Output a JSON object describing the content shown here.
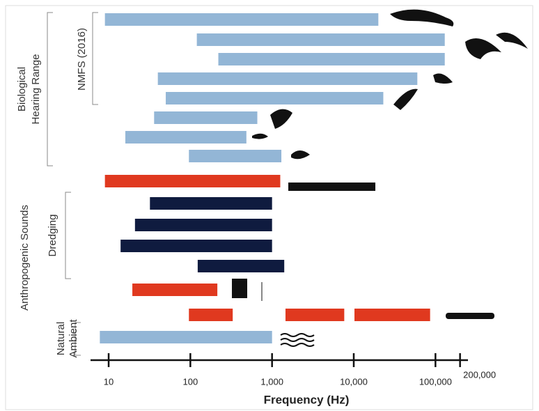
{
  "chart_data": {
    "type": "range-bar",
    "xlabel": "Frequency (Hz)",
    "xscale": "log",
    "xlim": [
      6,
      250000
    ],
    "xticks": [
      10,
      100,
      {
        "value": 1000,
        "label": "1,000"
      },
      {
        "value": 10000,
        "label": "10,000"
      },
      {
        "value": 100000,
        "label": "100,000"
      },
      {
        "value": 200000,
        "label": "200,000"
      }
    ],
    "rows": [
      [
        {
          "low": 9,
          "high": 20000,
          "color": "#93b6d6"
        }
      ],
      [
        {
          "low": 120,
          "high": 130000,
          "color": "#93b6d6"
        }
      ],
      [
        {
          "low": 220,
          "high": 130000,
          "color": "#93b6d6"
        }
      ],
      [
        {
          "low": 40,
          "high": 60000,
          "color": "#93b6d6"
        }
      ],
      [
        {
          "low": 50,
          "high": 23000,
          "color": "#93b6d6"
        }
      ],
      [
        {
          "low": 36,
          "high": 660,
          "color": "#93b6d6"
        }
      ],
      [
        {
          "low": 16,
          "high": 485,
          "color": "#93b6d6"
        }
      ],
      [
        {
          "low": 96,
          "high": 1300,
          "color": "#93b6d6"
        }
      ],
      [
        {
          "low": 9,
          "high": 1260,
          "color": "#e0391f"
        }
      ],
      [
        {
          "low": 32,
          "high": 1000,
          "color": "#0f1b3f"
        }
      ],
      [
        {
          "low": 21,
          "high": 1000,
          "color": "#0f1b3f"
        }
      ],
      [
        {
          "low": 14,
          "high": 1000,
          "color": "#0f1b3f"
        }
      ],
      [
        {
          "low": 123,
          "high": 1410,
          "color": "#0f1b3f"
        }
      ],
      [
        {
          "low": 19.5,
          "high": 214,
          "color": "#e0391f"
        }
      ],
      [
        {
          "low": 96,
          "high": 330,
          "color": "#e0391f"
        },
        {
          "low": 1460,
          "high": 7650,
          "color": "#e0391f"
        },
        {
          "low": 10200,
          "high": 86000,
          "color": "#e0391f"
        }
      ],
      [
        {
          "low": 7.8,
          "high": 1000,
          "color": "#93b6d6"
        }
      ]
    ],
    "groups": [
      {
        "label": [
          "NMFS (2016)"
        ]
      },
      {
        "label": [
          "Biological",
          "Hearing Range"
        ]
      },
      {
        "label": [
          "Anthropogenic Sounds"
        ]
      },
      {
        "label": [
          "Dredging"
        ]
      },
      {
        "label": [
          "Natural",
          "Ambient"
        ]
      }
    ]
  }
}
